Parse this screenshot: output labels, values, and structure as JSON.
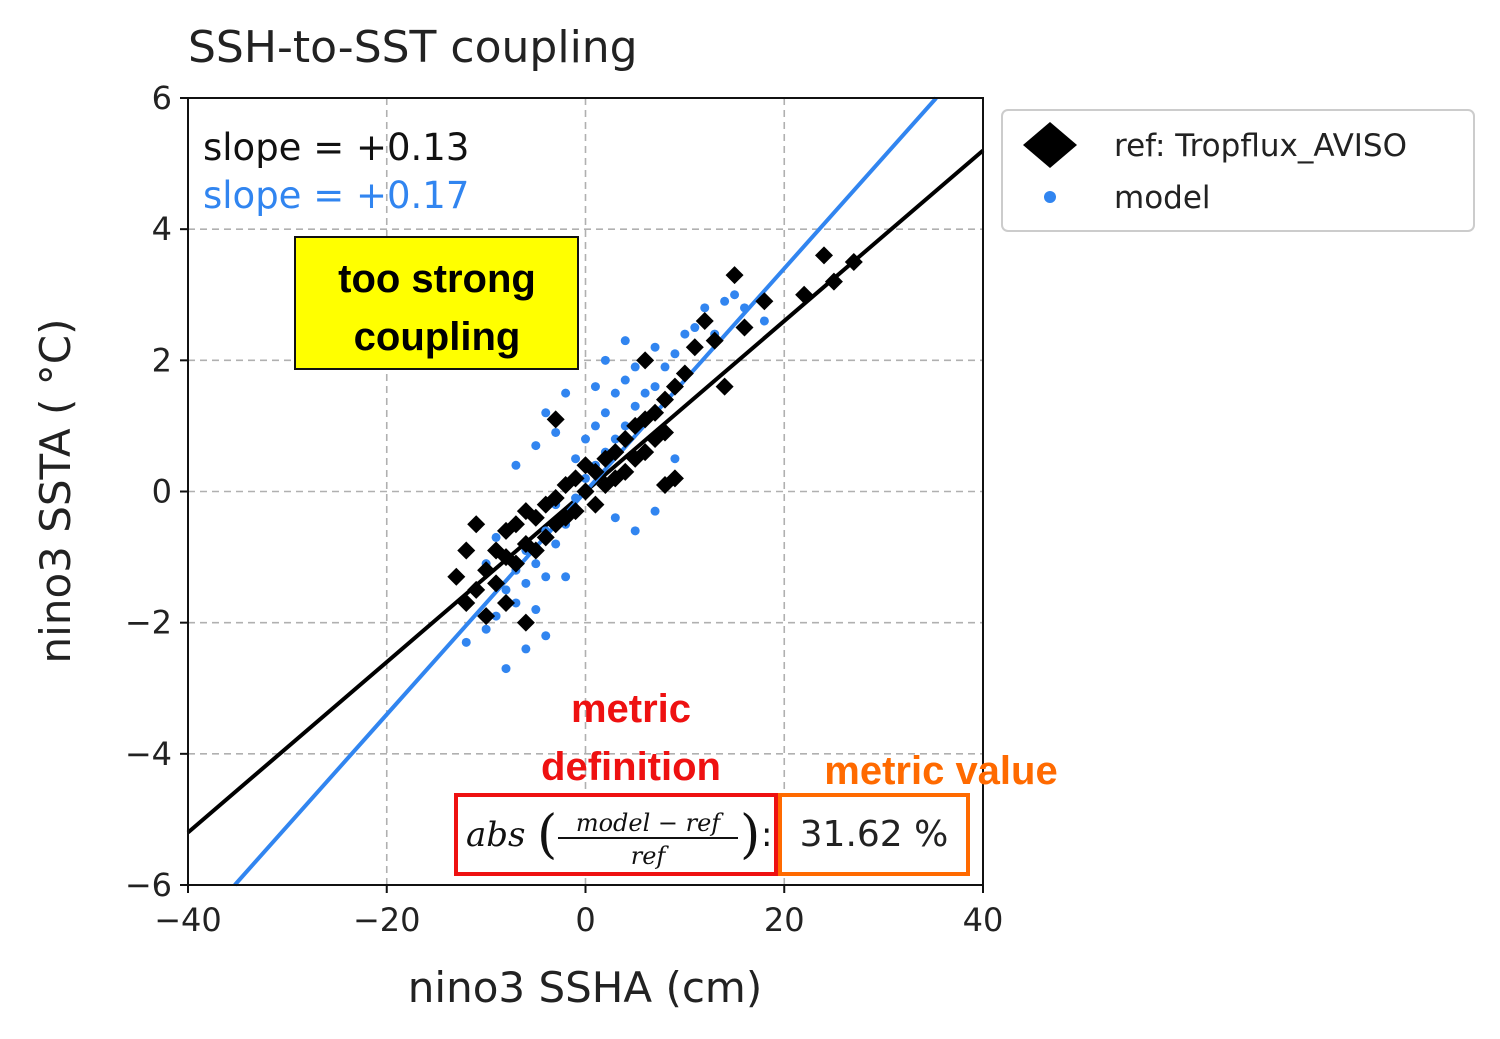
{
  "chart_data": {
    "type": "scatter",
    "title": "SSH-to-SST coupling",
    "xlabel": "nino3 SSHA (cm)",
    "ylabel": "nino3 SSTA ($^\\circ$C)",
    "xlim": [
      -40,
      40
    ],
    "ylim": [
      -6,
      6
    ],
    "x_ticks": [
      -40,
      -20,
      0,
      20,
      40
    ],
    "x_tick_labels": [
      "−40",
      "−20",
      "0",
      "20",
      "40"
    ],
    "y_ticks": [
      -6,
      -4,
      -2,
      0,
      2,
      4,
      6
    ],
    "y_tick_labels": [
      "−6",
      "−4",
      "−2",
      "0",
      "2",
      "4",
      "6"
    ],
    "grid": true,
    "legend_position": "outside-right-top",
    "series": [
      {
        "name": "ref: Tropflux_AVISO",
        "marker": "diamond",
        "color": "#000000",
        "slope": 0.13,
        "slope_text": "slope = +0.13",
        "points": [
          [
            -12,
            -1.7
          ],
          [
            -11,
            -1.5
          ],
          [
            -10,
            -1.9
          ],
          [
            -10,
            -1.2
          ],
          [
            -9,
            -0.9
          ],
          [
            -9,
            -1.4
          ],
          [
            -8,
            -0.6
          ],
          [
            -8,
            -1.0
          ],
          [
            -7,
            -0.5
          ],
          [
            -7,
            -1.1
          ],
          [
            -6,
            -0.3
          ],
          [
            -6,
            -0.8
          ],
          [
            -5,
            -0.4
          ],
          [
            -5,
            -0.9
          ],
          [
            -4,
            -0.2
          ],
          [
            -4,
            -0.7
          ],
          [
            -3,
            -0.1
          ],
          [
            -3,
            -0.5
          ],
          [
            -2,
            0.1
          ],
          [
            -2,
            -0.4
          ],
          [
            -1,
            0.2
          ],
          [
            -1,
            -0.3
          ],
          [
            0,
            0.0
          ],
          [
            0,
            0.4
          ],
          [
            1,
            0.3
          ],
          [
            1,
            -0.2
          ],
          [
            2,
            0.5
          ],
          [
            2,
            0.1
          ],
          [
            3,
            0.6
          ],
          [
            3,
            0.2
          ],
          [
            4,
            0.8
          ],
          [
            4,
            0.3
          ],
          [
            5,
            1.0
          ],
          [
            5,
            0.5
          ],
          [
            6,
            1.1
          ],
          [
            6,
            0.6
          ],
          [
            7,
            1.2
          ],
          [
            7,
            0.8
          ],
          [
            8,
            1.4
          ],
          [
            8,
            0.9
          ],
          [
            9,
            1.6
          ],
          [
            10,
            1.8
          ],
          [
            11,
            2.2
          ],
          [
            12,
            2.6
          ],
          [
            13,
            2.3
          ],
          [
            14,
            1.6
          ],
          [
            15,
            3.3
          ],
          [
            16,
            2.5
          ],
          [
            18,
            2.9
          ],
          [
            22,
            3.0
          ],
          [
            24,
            3.6
          ],
          [
            25,
            3.2
          ],
          [
            27,
            3.5
          ],
          [
            -13,
            -1.3
          ],
          [
            -12,
            -0.9
          ],
          [
            -11,
            -0.5
          ],
          [
            -3,
            1.1
          ],
          [
            6,
            2.0
          ],
          [
            8,
            0.1
          ],
          [
            9,
            0.2
          ],
          [
            -8,
            -1.7
          ],
          [
            -6,
            -2.0
          ]
        ]
      },
      {
        "name": "model",
        "marker": "dot",
        "color": "#3185f0",
        "slope": 0.17,
        "slope_text": "slope = +0.17",
        "points": [
          [
            -12,
            -2.3
          ],
          [
            -10,
            -2.1
          ],
          [
            -9,
            -1.9
          ],
          [
            -8,
            -2.7
          ],
          [
            -8,
            -1.5
          ],
          [
            -7,
            -1.7
          ],
          [
            -7,
            -1.2
          ],
          [
            -6,
            -1.4
          ],
          [
            -6,
            -0.9
          ],
          [
            -5,
            -1.8
          ],
          [
            -5,
            -1.1
          ],
          [
            -4,
            -1.3
          ],
          [
            -4,
            -0.6
          ],
          [
            -3,
            -0.8
          ],
          [
            -3,
            -0.2
          ],
          [
            -2,
            -0.5
          ],
          [
            -2,
            0.1
          ],
          [
            -1,
            -0.1
          ],
          [
            -1,
            0.5
          ],
          [
            0,
            0.2
          ],
          [
            0,
            0.8
          ],
          [
            1,
            0.4
          ],
          [
            1,
            1.0
          ],
          [
            2,
            0.6
          ],
          [
            2,
            1.2
          ],
          [
            3,
            0.8
          ],
          [
            3,
            1.5
          ],
          [
            4,
            1.0
          ],
          [
            4,
            1.7
          ],
          [
            5,
            1.3
          ],
          [
            5,
            1.9
          ],
          [
            6,
            1.5
          ],
          [
            6,
            2.0
          ],
          [
            7,
            1.6
          ],
          [
            7,
            2.2
          ],
          [
            8,
            1.9
          ],
          [
            9,
            2.1
          ],
          [
            10,
            2.4
          ],
          [
            11,
            2.5
          ],
          [
            12,
            2.8
          ],
          [
            13,
            2.4
          ],
          [
            14,
            2.9
          ],
          [
            15,
            3.0
          ],
          [
            16,
            2.8
          ],
          [
            18,
            2.6
          ],
          [
            -7,
            0.4
          ],
          [
            -5,
            0.7
          ],
          [
            -4,
            1.2
          ],
          [
            -3,
            0.9
          ],
          [
            -2,
            1.5
          ],
          [
            -6,
            -2.4
          ],
          [
            -4,
            -2.2
          ],
          [
            -2,
            -1.3
          ],
          [
            3,
            -0.4
          ],
          [
            5,
            -0.6
          ],
          [
            7,
            -0.3
          ],
          [
            9,
            0.5
          ],
          [
            -9,
            -0.7
          ],
          [
            -10,
            -1.1
          ],
          [
            4,
            2.3
          ],
          [
            2,
            2.0
          ],
          [
            1,
            1.6
          ]
        ]
      }
    ],
    "annotations": {
      "callout": [
        "too strong",
        "coupling"
      ],
      "metric_definition_label": [
        "metric",
        "definition"
      ],
      "metric_value_label": "metric value",
      "metric_formula_prefix": "abs",
      "metric_formula_numerator": "model − ref",
      "metric_formula_denominator": "ref",
      "metric_value": "31.62 %"
    },
    "colors": {
      "ref": "#000000",
      "model": "#3185f0",
      "callout_bg": "#ffff00",
      "definition_red": "#ee1111",
      "value_orange": "#ff6a00"
    }
  }
}
